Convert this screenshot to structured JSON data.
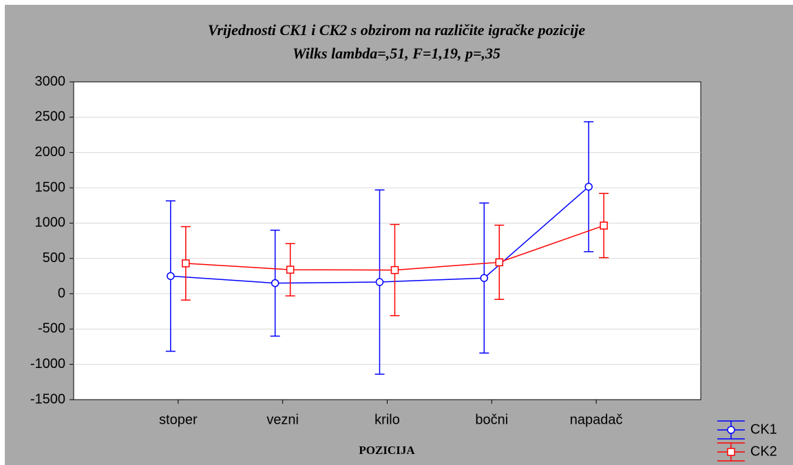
{
  "chart_data": {
    "type": "errorbar-line",
    "title": "Vrijednosti CK1 i CK2 s obzirom na različite igračke pozicije",
    "subtitle": "Wilks lambda=,51, F=1,19, p=,35",
    "x_label": "POZICIJA",
    "categories": [
      "stoper",
      "vezni",
      "krilo",
      "bočni",
      "napadač"
    ],
    "series": [
      {
        "name": "CK1",
        "color": "#0000ff",
        "marker": "circle",
        "values": [
          250,
          150,
          165,
          222,
          1515
        ],
        "errors": [
          1065,
          750,
          1305,
          1062,
          920
        ]
      },
      {
        "name": "CK2",
        "color": "#ff0000",
        "marker": "square",
        "values": [
          430,
          340,
          335,
          445,
          965
        ],
        "errors": [
          520,
          370,
          645,
          525,
          455
        ]
      }
    ],
    "ylim": [
      -1500,
      3000
    ],
    "yticks": [
      -1500,
      -1000,
      -500,
      0,
      500,
      1000,
      1500,
      2000,
      2500,
      3000
    ],
    "grid": true,
    "legend": "bottom-right"
  }
}
